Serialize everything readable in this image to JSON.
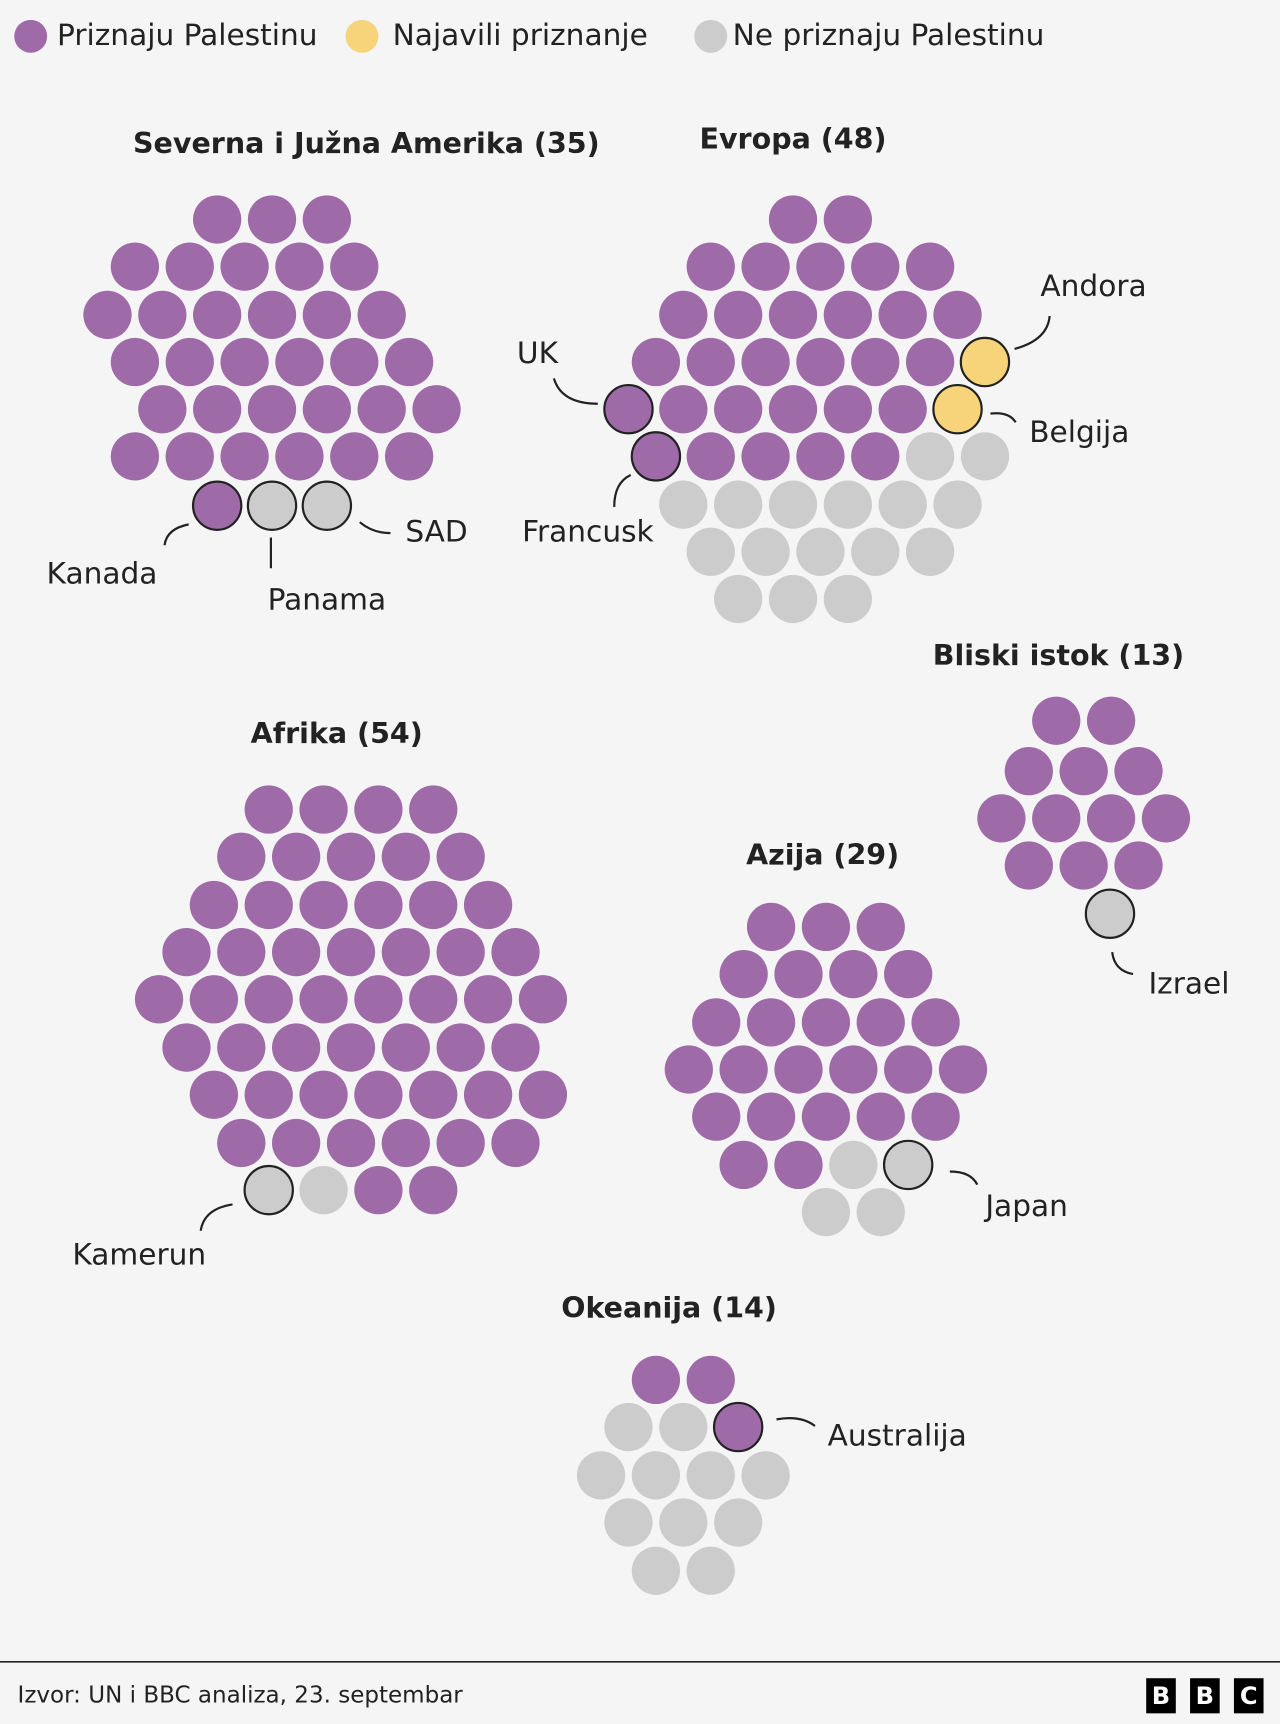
{
  "legend": [
    "Priznaju Palestinu",
    "Najavili priznanje",
    "Ne priznaju Palestinu"
  ],
  "colors": [
    "#9e6aa8",
    "#f7d47a",
    "#cccccc"
  ],
  "regions": [
    {
      "title": "Severna i Južna Amerika (35)",
      "counts": [
        33,
        0,
        2
      ],
      "callouts": [
        "Kanada",
        "Panama",
        "SAD"
      ]
    },
    {
      "title": "Evropa (48)",
      "counts": [
        30,
        2,
        16
      ],
      "callouts": [
        "Andora",
        "Belgija",
        "UK",
        "Francusk"
      ]
    },
    {
      "title": "Bliski istok (13)",
      "counts": [
        12,
        0,
        1
      ],
      "callouts": [
        "Izrael"
      ]
    },
    {
      "title": "Afrika (54)",
      "counts": [
        52,
        0,
        2
      ],
      "callouts": [
        "Kamerun"
      ]
    },
    {
      "title": "Azija (29)",
      "counts": [
        25,
        0,
        4
      ],
      "callouts": [
        "Japan"
      ]
    },
    {
      "title": "Okeanija (14)",
      "counts": [
        3,
        0,
        11
      ],
      "callouts": [
        "Australija"
      ]
    }
  ],
  "source": "Izvor: UN i BBC analiza, 23. septembar",
  "logo": [
    "B",
    "B",
    "C"
  ]
}
